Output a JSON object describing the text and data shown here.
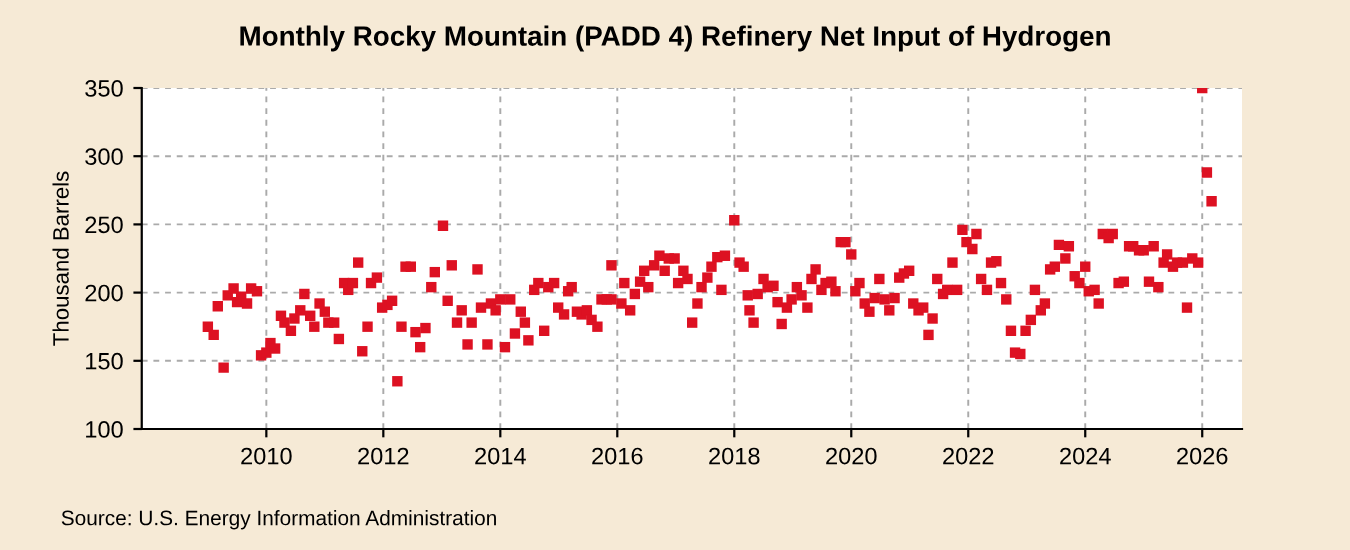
{
  "chart_data": {
    "type": "scatter",
    "title": "Monthly Rocky Mountain (PADD 4) Refinery Net Input of Hydrogen",
    "ylabel": "Thousand Barrels",
    "annotations": [
      "Source: U.S. Energy Information Administration"
    ],
    "xlim": [
      2007.87,
      2026.68
    ],
    "ylim": [
      100,
      350
    ],
    "xticks": [
      2010,
      2012,
      2014,
      2016,
      2018,
      2020,
      2022,
      2024,
      2026
    ],
    "yticks": [
      100,
      150,
      200,
      250,
      300,
      350
    ],
    "grid": true,
    "marker": "square",
    "series": [
      {
        "color": "#dd1122",
        "x": [
          2009.0,
          2009.1,
          2009.17,
          2009.27,
          2009.34,
          2009.44,
          2009.5,
          2009.57,
          2009.67,
          2009.74,
          2009.84,
          2009.91,
          2010.0,
          2010.07,
          2010.15,
          2010.25,
          2010.31,
          2010.42,
          2010.48,
          2010.58,
          2010.65,
          2010.75,
          2010.82,
          2010.91,
          2011.0,
          2011.06,
          2011.16,
          2011.24,
          2011.33,
          2011.4,
          2011.48,
          2011.57,
          2011.64,
          2011.73,
          2011.79,
          2011.89,
          2011.98,
          2012.07,
          2012.15,
          2012.24,
          2012.31,
          2012.38,
          2012.47,
          2012.55,
          2012.63,
          2012.72,
          2012.82,
          2012.88,
          2013.02,
          2013.1,
          2013.17,
          2013.26,
          2013.34,
          2013.44,
          2013.51,
          2013.61,
          2013.67,
          2013.78,
          2013.84,
          2013.92,
          2014.0,
          2014.08,
          2014.17,
          2014.25,
          2014.35,
          2014.42,
          2014.48,
          2014.58,
          2014.65,
          2014.75,
          2014.82,
          2014.92,
          2014.99,
          2015.09,
          2015.16,
          2015.22,
          2015.31,
          2015.39,
          2015.48,
          2015.56,
          2015.66,
          2015.73,
          2015.82,
          2015.9,
          2015.9,
          2016.07,
          2016.12,
          2016.22,
          2016.3,
          2016.39,
          2016.46,
          2016.53,
          2016.63,
          2016.72,
          2016.81,
          2016.88,
          2016.98,
          2017.04,
          2017.13,
          2017.2,
          2017.28,
          2017.37,
          2017.44,
          2017.54,
          2017.61,
          2017.71,
          2017.78,
          2017.84,
          2018.0,
          2018.09,
          2018.16,
          2018.23,
          2018.26,
          2018.33,
          2018.4,
          2018.5,
          2018.57,
          2018.67,
          2018.74,
          2018.81,
          2018.9,
          2018.98,
          2019.07,
          2019.15,
          2019.25,
          2019.32,
          2019.39,
          2019.49,
          2019.56,
          2019.66,
          2019.73,
          2019.82,
          2019.9,
          2020.0,
          2020.07,
          2020.14,
          2020.23,
          2020.31,
          2020.4,
          2020.48,
          2020.57,
          2020.65,
          2020.74,
          2020.82,
          2020.9,
          2020.99,
          2021.06,
          2021.15,
          2021.23,
          2021.32,
          2021.39,
          2021.47,
          2021.57,
          2021.64,
          2021.73,
          2021.81,
          2021.9,
          2021.97,
          2022.07,
          2022.14,
          2022.22,
          2022.32,
          2022.39,
          2022.48,
          2022.56,
          2022.65,
          2022.73,
          2022.8,
          2022.89,
          2022.98,
          2023.07,
          2023.14,
          2023.24,
          2023.31,
          2023.4,
          2023.48,
          2023.55,
          2023.66,
          2023.72,
          2023.82,
          2023.9,
          2024.0,
          2024.06,
          2024.16,
          2024.23,
          2024.3,
          2024.4,
          2024.47,
          2024.57,
          2024.66,
          2024.75,
          2024.82,
          2024.92,
          2025.0,
          2025.09,
          2025.17,
          2025.25,
          2025.34,
          2025.4,
          2025.5,
          2025.57,
          2025.67,
          2025.74,
          2025.83,
          2025.93,
          2026.0,
          2026.08,
          2026.16
        ],
        "values": [
          175,
          169,
          190,
          145,
          198,
          203,
          193,
          197,
          192,
          203,
          201,
          154,
          156,
          163,
          159,
          183,
          178,
          172,
          181,
          187,
          199,
          183,
          175,
          192,
          186,
          178,
          178,
          166,
          207,
          202,
          207,
          222,
          157,
          175,
          207,
          211,
          189,
          191,
          194,
          135,
          175,
          219,
          219,
          171,
          160,
          174,
          204,
          215,
          249,
          194,
          220,
          178,
          187,
          162,
          178,
          217,
          189,
          162,
          192,
          187,
          195,
          160,
          195,
          170,
          186,
          178,
          165,
          202,
          207,
          172,
          204,
          207,
          189,
          184,
          201,
          204,
          186,
          184,
          187,
          180,
          175,
          195,
          195,
          195,
          220,
          192,
          207,
          187,
          199,
          208,
          216,
          204,
          220,
          227,
          216,
          225,
          225,
          207,
          216,
          210,
          178,
          192,
          204,
          211,
          219,
          226,
          202,
          227,
          253,
          222,
          219,
          198,
          187,
          178,
          199,
          210,
          204,
          205,
          193,
          177,
          189,
          195,
          204,
          198,
          189,
          210,
          217,
          202,
          207,
          208,
          201,
          237,
          237,
          228,
          201,
          207,
          192,
          186,
          196,
          210,
          195,
          187,
          196,
          211,
          214,
          216,
          192,
          187,
          189,
          169,
          181,
          210,
          199,
          202,
          222,
          202,
          246,
          237,
          232,
          243,
          210,
          202,
          222,
          223,
          207,
          195,
          172,
          156,
          155,
          172,
          180,
          202,
          187,
          192,
          217,
          219,
          235,
          225,
          234,
          212,
          207,
          219,
          201,
          202,
          192,
          243,
          240,
          243,
          207,
          208,
          234,
          234,
          231,
          231,
          208,
          234,
          204,
          222,
          228,
          219,
          222,
          222,
          189,
          225,
          222,
          350,
          288,
          267
        ]
      }
    ]
  }
}
